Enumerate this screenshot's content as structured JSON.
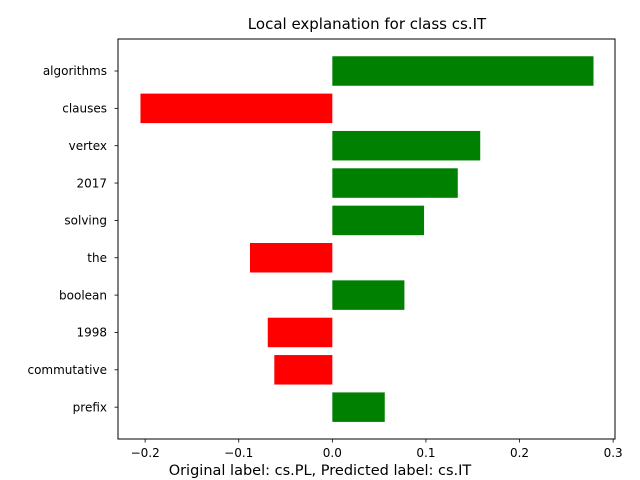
{
  "chart_data": {
    "type": "bar",
    "orientation": "horizontal",
    "title": "Local explanation for class cs.IT",
    "caption": "Original label: cs.PL, Predicted label: cs.IT",
    "xlabel": "",
    "ylabel": "",
    "categories": [
      "algorithms",
      "clauses",
      "vertex",
      "2017",
      "solving",
      "the",
      "boolean",
      "1998",
      "commutative",
      "prefix"
    ],
    "values": [
      0.279,
      -0.205,
      0.158,
      0.134,
      0.098,
      -0.088,
      0.077,
      -0.069,
      -0.062,
      0.056
    ],
    "xlim": [
      -0.229,
      0.302
    ],
    "xticks": [
      -0.2,
      -0.1,
      0.0,
      0.1,
      0.2,
      0.3
    ],
    "xtick_labels": [
      "−0.2",
      "−0.1",
      "0.0",
      "0.1",
      "0.2",
      "0.3"
    ],
    "grid": false,
    "colors": {
      "positive": "#008000",
      "negative": "#ff0000"
    }
  }
}
